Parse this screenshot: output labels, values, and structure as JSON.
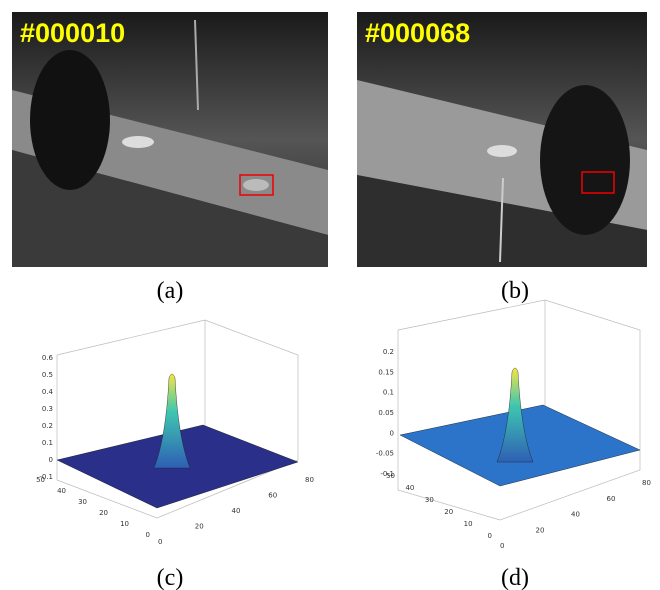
{
  "panels": [
    {
      "label": "(a)",
      "frame": "#000010"
    },
    {
      "label": "(b)",
      "frame": "#000068"
    },
    {
      "label": "(c)",
      "zticks": [
        0.6,
        0.5,
        0.4,
        0.3,
        0.2,
        0.1,
        0,
        -0.1
      ],
      "yticks": [
        50,
        40,
        30,
        20,
        10,
        0
      ],
      "xticks": [
        0,
        20,
        40,
        60,
        80
      ]
    },
    {
      "label": "(d)",
      "zticks": [
        0.2,
        0.15,
        0.1,
        0.05,
        0,
        -0.05,
        -0.1
      ],
      "yticks": [
        50,
        40,
        30,
        20,
        10,
        0
      ],
      "xticks": [
        0,
        20,
        40,
        60,
        80
      ]
    }
  ]
}
